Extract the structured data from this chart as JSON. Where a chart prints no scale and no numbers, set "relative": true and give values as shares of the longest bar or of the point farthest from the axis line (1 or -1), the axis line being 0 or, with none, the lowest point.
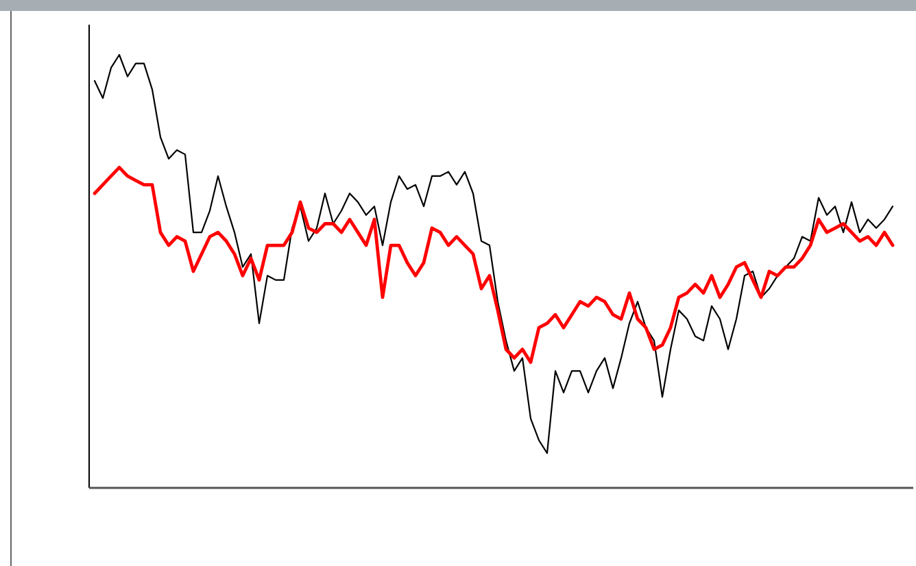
{
  "chart_data": {
    "type": "line",
    "relative": true,
    "categories": [
      null,
      null,
      null,
      null,
      null,
      null,
      null,
      null,
      null,
      null,
      null,
      null,
      null,
      null,
      null,
      null,
      null,
      null,
      null,
      null,
      null,
      null,
      null,
      null,
      null,
      null,
      null,
      null,
      null,
      null,
      null,
      null,
      null,
      null,
      null,
      null,
      null,
      null,
      null,
      null,
      null,
      null,
      null,
      null,
      null,
      null,
      null,
      null,
      null,
      null,
      null,
      null,
      null,
      null,
      null,
      null,
      null,
      null,
      null,
      null,
      null,
      null,
      null,
      null,
      null,
      null,
      null,
      null,
      null,
      null,
      null,
      null,
      null,
      null,
      null,
      null,
      null,
      null,
      null,
      null,
      null,
      null,
      null,
      null,
      null,
      null,
      null,
      null,
      null,
      null,
      null,
      null,
      null,
      null,
      null,
      null,
      null,
      null
    ],
    "series": [
      {
        "color": "#000000",
        "values": [
          0.94,
          0.9,
          0.97,
          1.0,
          0.95,
          0.98,
          0.98,
          0.92,
          0.81,
          0.76,
          0.78,
          0.77,
          0.59,
          0.59,
          0.64,
          0.72,
          0.65,
          0.59,
          0.51,
          0.54,
          0.38,
          0.49,
          0.48,
          0.48,
          0.6,
          0.65,
          0.57,
          0.6,
          0.68,
          0.61,
          0.64,
          0.68,
          0.66,
          0.63,
          0.65,
          0.56,
          0.66,
          0.72,
          0.69,
          0.7,
          0.65,
          0.72,
          0.72,
          0.73,
          0.7,
          0.73,
          0.68,
          0.57,
          0.56,
          0.43,
          0.34,
          0.27,
          0.3,
          0.16,
          0.11,
          0.08,
          0.27,
          0.22,
          0.27,
          0.27,
          0.22,
          0.27,
          0.3,
          0.23,
          0.3,
          0.38,
          0.43,
          0.37,
          0.34,
          0.21,
          0.32,
          0.41,
          0.39,
          0.35,
          0.34,
          0.42,
          0.39,
          0.32,
          0.39,
          0.49,
          0.5,
          0.44,
          0.46,
          0.49,
          0.51,
          0.53,
          0.58,
          0.57,
          0.67,
          0.63,
          0.65,
          0.59,
          0.66,
          0.59,
          0.62,
          0.6,
          0.62,
          0.65
        ]
      },
      {
        "color": "#ff0000",
        "values": [
          0.68,
          0.7,
          0.72,
          0.74,
          0.72,
          0.71,
          0.7,
          0.7,
          0.59,
          0.56,
          0.58,
          0.57,
          0.5,
          0.54,
          0.58,
          0.59,
          0.57,
          0.54,
          0.49,
          0.53,
          0.48,
          0.56,
          0.56,
          0.56,
          0.59,
          0.66,
          0.6,
          0.59,
          0.61,
          0.61,
          0.59,
          0.62,
          0.59,
          0.56,
          0.62,
          0.44,
          0.56,
          0.56,
          0.52,
          0.49,
          0.52,
          0.6,
          0.59,
          0.56,
          0.58,
          0.56,
          0.54,
          0.46,
          0.49,
          0.41,
          0.32,
          0.3,
          0.32,
          0.29,
          0.37,
          0.38,
          0.4,
          0.37,
          0.4,
          0.43,
          0.42,
          0.44,
          0.43,
          0.4,
          0.39,
          0.45,
          0.39,
          0.37,
          0.32,
          0.33,
          0.37,
          0.44,
          0.45,
          0.47,
          0.45,
          0.49,
          0.44,
          0.47,
          0.51,
          0.52,
          0.48,
          0.44,
          0.5,
          0.49,
          0.51,
          0.51,
          0.53,
          0.56,
          0.62,
          0.59,
          0.6,
          0.61,
          0.59,
          0.57,
          0.58,
          0.56,
          0.59,
          0.56
        ]
      }
    ],
    "grid": false
  }
}
